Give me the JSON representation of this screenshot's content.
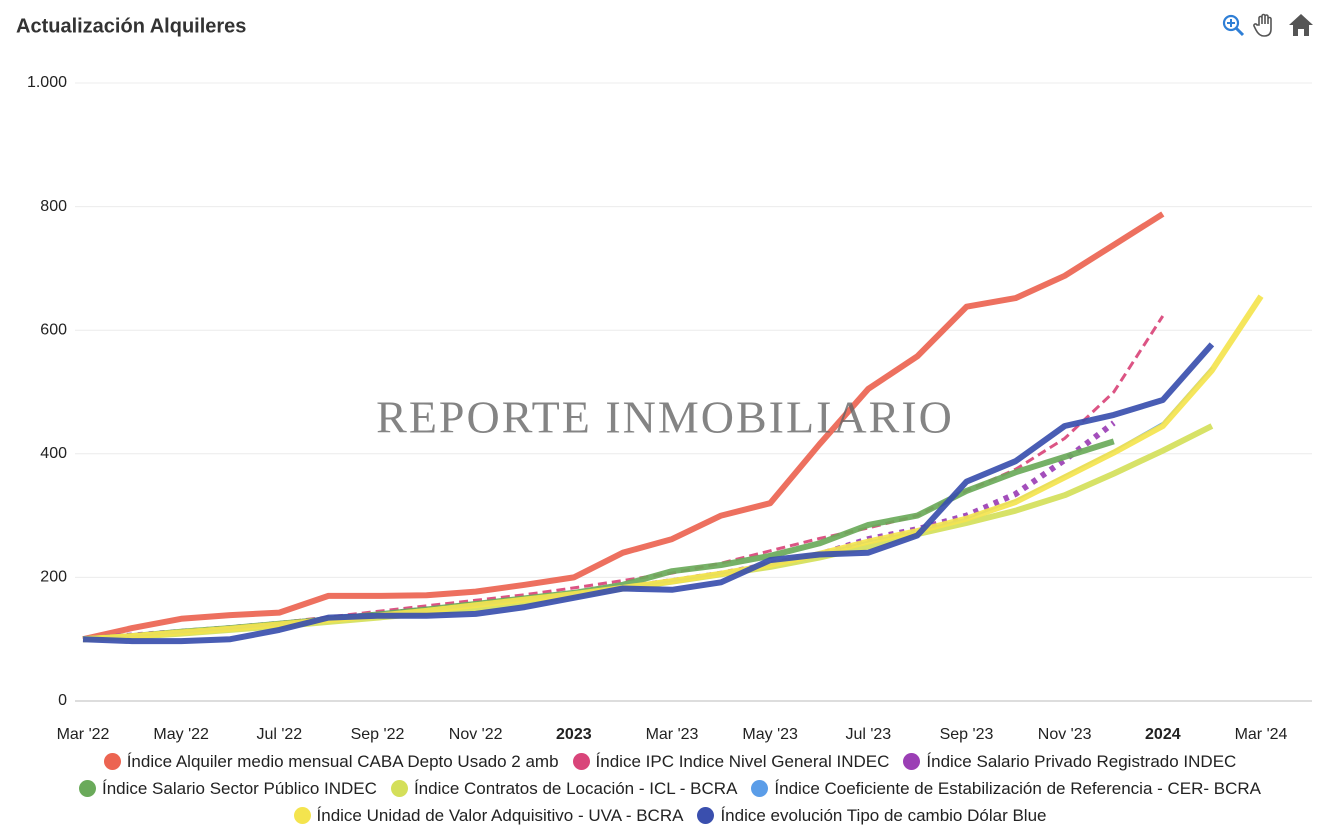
{
  "chart_data": {
    "type": "line",
    "title": "Actualización Alquileres",
    "watermark": "REPORTE INMOBILIARIO",
    "categories": [
      "Mar '22",
      null,
      "May '22",
      null,
      "Jul '22",
      null,
      "Sep '22",
      null,
      "Nov '22",
      null,
      "2023",
      null,
      "Mar '23",
      null,
      "May '23",
      null,
      "Jul '23",
      null,
      "Sep '23",
      null,
      "Nov '23",
      null,
      "2024",
      null,
      "Mar '24"
    ],
    "ylim": [
      0,
      1000
    ],
    "yticks": [
      0,
      200,
      400,
      600,
      800,
      {
        "value": 1000,
        "label": "1.000"
      }
    ],
    "grid": true,
    "legend": "bottom",
    "series": [
      {
        "name": "Índice Alquiler medio mensual CABA Depto Usado 2 amb",
        "color": "#ec6451",
        "line_style": "solid",
        "values": [
          100,
          118,
          133,
          139,
          143,
          170,
          170,
          171,
          177,
          188,
          200,
          240,
          262,
          300,
          320,
          415,
          505,
          558,
          638,
          652,
          688,
          738,
          788,
          null,
          null
        ]
      },
      {
        "name": "Índice IPC Indice Nivel General INDEC",
        "color": "#d9457a",
        "line_style": "dashed",
        "values": [
          100,
          106,
          113,
          119,
          127,
          136,
          145,
          154,
          163,
          172,
          183,
          195,
          207,
          223,
          243,
          263,
          280,
          300,
          340,
          375,
          425,
          500,
          623,
          null,
          null
        ]
      },
      {
        "name": "Índice Salario Privado Registrado INDEC",
        "color": "#9b3fb5",
        "line_style": "dotted",
        "values": [
          100,
          106,
          112,
          118,
          125,
          132,
          140,
          148,
          156,
          164,
          173,
          183,
          194,
          206,
          221,
          237,
          262,
          278,
          300,
          335,
          390,
          450,
          null,
          null,
          null
        ]
      },
      {
        "name": "Índice Salario Sector Público INDEC",
        "color": "#6aaa5a",
        "line_style": "solid",
        "values": [
          100,
          105,
          112,
          118,
          125,
          132,
          140,
          148,
          157,
          166,
          175,
          188,
          210,
          220,
          235,
          255,
          285,
          300,
          340,
          370,
          395,
          420,
          null,
          null,
          null
        ]
      },
      {
        "name": "Índice Contratos de Locación - ICL - BCRA",
        "color": "#d4df5a",
        "line_style": "solid",
        "values": [
          100,
          104,
          109,
          115,
          121,
          128,
          135,
          142,
          150,
          160,
          170,
          182,
          193,
          205,
          217,
          232,
          250,
          270,
          288,
          308,
          333,
          368,
          405,
          445,
          null
        ]
      },
      {
        "name": "Índice Coeficiente de Estabilización de Referencia - CER- BCRA",
        "color": "#5b9de8",
        "line_style": "solid",
        "values": [
          100,
          105,
          111,
          117,
          124,
          131,
          138,
          146,
          155,
          164,
          173,
          183,
          194,
          206,
          220,
          238,
          258,
          275,
          295,
          325,
          365,
          405,
          450,
          540,
          null
        ]
      },
      {
        "name": "Índice Unidad de Valor Adquisitivo - UVA - BCRA",
        "color": "#f4e44e",
        "line_style": "solid",
        "values": [
          100,
          105,
          111,
          117,
          124,
          131,
          138,
          146,
          155,
          164,
          173,
          183,
          194,
          206,
          220,
          238,
          258,
          275,
          295,
          322,
          362,
          402,
          445,
          535,
          655
        ]
      },
      {
        "name": "Índice evolución Tipo de cambio Dólar Blue",
        "color": "#3a4fae",
        "line_style": "solid",
        "values": [
          100,
          97,
          97,
          100,
          115,
          135,
          138,
          138,
          141,
          152,
          167,
          182,
          180,
          192,
          228,
          237,
          240,
          268,
          355,
          388,
          445,
          463,
          487,
          577,
          null
        ]
      }
    ]
  }
}
